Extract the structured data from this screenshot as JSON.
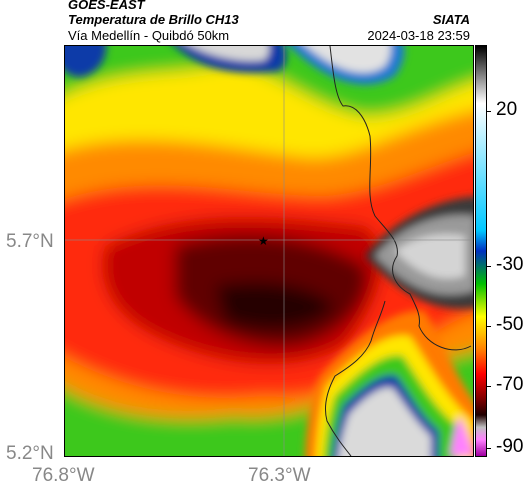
{
  "header": {
    "satellite": "GOES-EAST",
    "product": "Temperatura de Brillo CH13",
    "organization": "SIATA",
    "region": "Vía Medellín - Quibdó 50km",
    "timestamp": "2024-03-18 23:59"
  },
  "map": {
    "x_ticks": [
      "76.8°W",
      "76.3°W"
    ],
    "y_ticks": [
      "5.7°N",
      "5.2°N"
    ],
    "marker": "star"
  },
  "colorbar": {
    "ticks": [
      "20",
      "-30",
      "-50",
      "-70",
      "-90"
    ],
    "colors": [
      "#000000",
      "#ffffff",
      "#00c8ff",
      "#0030c0",
      "#00c000",
      "#ffff00",
      "#ff8000",
      "#ff0000",
      "#800000",
      "#200000",
      "#c0c0c0",
      "#ff80ff",
      "#a000a0"
    ]
  },
  "colors": {
    "cloud_cold": "#3a0000",
    "cloud_warm": "#ff2a0a",
    "clear": "#cfcfcf",
    "green": "#3cd21e",
    "yellow": "#ffe600",
    "blue": "#0a3aa8"
  }
}
